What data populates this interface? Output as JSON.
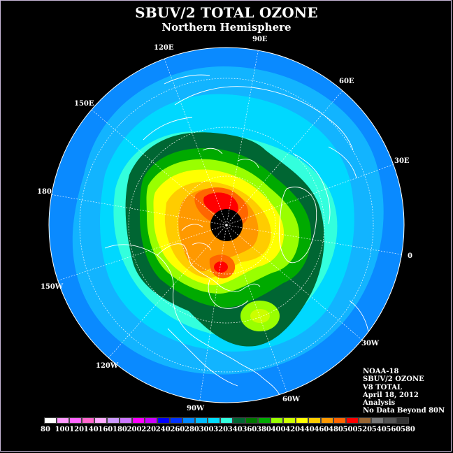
{
  "title": "SBUV/2 TOTAL OZONE",
  "subtitle": "Northern Hemisphere",
  "longitude_labels": {
    "lon_90e": "90E",
    "lon_60e": "60E",
    "lon_30e": "30E",
    "lon_0": "0",
    "lon_30w": "30W",
    "lon_60w": "60W",
    "lon_90w": "90W",
    "lon_120w": "120W",
    "lon_150w": "150W",
    "lon_180": "180",
    "lon_150e": "150E",
    "lon_120e": "120E"
  },
  "info": {
    "satellite": "NOAA-18",
    "product": "SBUV/2 OZONE",
    "version": "V8 TOTAL",
    "date": "April 18, 2012",
    "type": "Analysis",
    "note": "No Data Beyond 80N"
  },
  "colorbar": {
    "colors": [
      "#ffffff",
      "#ff99ff",
      "#ff66ff",
      "#ff66cc",
      "#ffaaff",
      "#cc99ff",
      "#cc77ff",
      "#ff00ff",
      "#cc00ff",
      "#0000ff",
      "#0033ff",
      "#0088ff",
      "#00bbff",
      "#00ddff",
      "#33ffdd",
      "#006633",
      "#007700",
      "#00aa00",
      "#99ff00",
      "#ccff00",
      "#ffff00",
      "#ffcc00",
      "#ff9900",
      "#ff6600",
      "#ff0000",
      "#996633",
      "#777777",
      "#555555",
      "#333333"
    ],
    "labels": [
      "80",
      "100",
      "120",
      "140",
      "160",
      "180",
      "200",
      "220",
      "240",
      "260",
      "280",
      "300",
      "320",
      "340",
      "360",
      "380",
      "400",
      "420",
      "440",
      "460",
      "480",
      "500",
      "520",
      "540",
      "560",
      "580"
    ]
  }
}
